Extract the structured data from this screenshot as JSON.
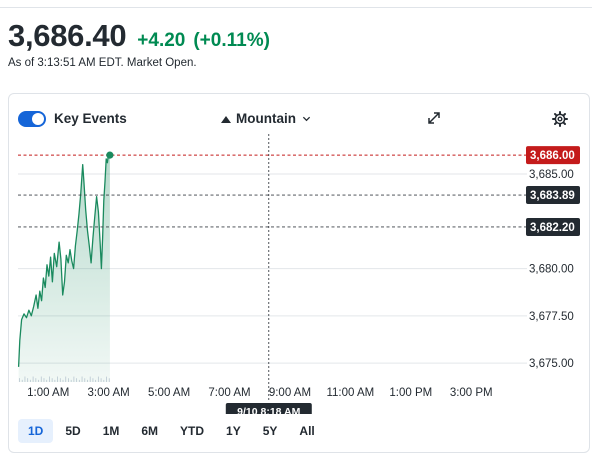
{
  "quote": {
    "price": "3,686.40",
    "change": "+4.20",
    "change_pct": "(+0.11%)",
    "as_of": "As of 3:13:51 AM EDT. Market Open."
  },
  "toolbar": {
    "key_events_label": "Key Events",
    "key_events_on": true,
    "chart_type_label": "Mountain",
    "icons": [
      "mountain-icon",
      "chevron-down-icon",
      "expand-icon",
      "gear-icon"
    ]
  },
  "colors": {
    "up": "#008a52",
    "line": "#1a8a5e",
    "area": "#e3f2ea",
    "current_tag": "#c41b1b",
    "ref_tag": "#232a31",
    "accent": "#1565d8"
  },
  "chart_data": {
    "type": "area",
    "title": "",
    "xlabel": "",
    "ylabel": "",
    "x_tick_labels": [
      "1:00 AM",
      "3:00 AM",
      "5:00 AM",
      "7:00 AM",
      "9:00 AM",
      "11:00 AM",
      "1:00 PM",
      "3:00 PM"
    ],
    "y_tick_labels": [
      "3,685.00",
      "3,680.00",
      "3,677.50",
      "3,675.00"
    ],
    "y_ticks": [
      3685,
      3680,
      3677.5,
      3675
    ],
    "ylim": [
      3674,
      3686.8
    ],
    "x_hours_range": [
      0.0,
      16.25
    ],
    "grid": true,
    "crosshair_label": "9/10 8:18 AM",
    "crosshair_hour": 8.3,
    "price_tags": [
      {
        "label": "3,686.00",
        "value": 3686.0,
        "kind": "current"
      },
      {
        "label": "3,683.89",
        "value": 3683.89,
        "kind": "ref"
      },
      {
        "label": "3,682.20",
        "value": 3682.2,
        "kind": "ref"
      }
    ],
    "series": [
      {
        "values": [
          [
            0.02,
            3674.8
          ],
          [
            0.06,
            3676.2
          ],
          [
            0.12,
            3677.3
          ],
          [
            0.2,
            3677.6
          ],
          [
            0.28,
            3677.4
          ],
          [
            0.36,
            3677.8
          ],
          [
            0.44,
            3677.5
          ],
          [
            0.52,
            3678.0
          ],
          [
            0.6,
            3678.6
          ],
          [
            0.66,
            3677.9
          ],
          [
            0.72,
            3678.8
          ],
          [
            0.78,
            3678.3
          ],
          [
            0.84,
            3679.5
          ],
          [
            0.9,
            3679.0
          ],
          [
            0.96,
            3680.2
          ],
          [
            1.02,
            3679.6
          ],
          [
            1.08,
            3680.6
          ],
          [
            1.14,
            3679.3
          ],
          [
            1.2,
            3680.8
          ],
          [
            1.28,
            3680.1
          ],
          [
            1.36,
            3681.4
          ],
          [
            1.42,
            3680.5
          ],
          [
            1.48,
            3678.6
          ],
          [
            1.54,
            3679.3
          ],
          [
            1.6,
            3680.7
          ],
          [
            1.66,
            3680.3
          ],
          [
            1.72,
            3681.0
          ],
          [
            1.78,
            3680.4
          ],
          [
            1.84,
            3680.0
          ],
          [
            1.9,
            3681.2
          ],
          [
            1.96,
            3682.0
          ],
          [
            2.02,
            3682.9
          ],
          [
            2.08,
            3684.0
          ],
          [
            2.14,
            3685.5
          ],
          [
            2.18,
            3684.6
          ],
          [
            2.24,
            3683.1
          ],
          [
            2.3,
            3682.0
          ],
          [
            2.36,
            3681.2
          ],
          [
            2.42,
            3680.3
          ],
          [
            2.48,
            3681.6
          ],
          [
            2.54,
            3682.7
          ],
          [
            2.6,
            3683.8
          ],
          [
            2.66,
            3683.0
          ],
          [
            2.72,
            3681.3
          ],
          [
            2.76,
            3680.0
          ],
          [
            2.8,
            3681.6
          ],
          [
            2.84,
            3683.6
          ],
          [
            2.88,
            3684.6
          ],
          [
            2.92,
            3685.8
          ],
          [
            2.96,
            3685.6
          ],
          [
            3.0,
            3686.1
          ],
          [
            3.04,
            3686.0
          ]
        ]
      }
    ]
  },
  "ranges": {
    "items": [
      {
        "key": "1d",
        "label": "1D",
        "active": true
      },
      {
        "key": "5d",
        "label": "5D",
        "active": false
      },
      {
        "key": "1m",
        "label": "1M",
        "active": false
      },
      {
        "key": "6m",
        "label": "6M",
        "active": false
      },
      {
        "key": "ytd",
        "label": "YTD",
        "active": false
      },
      {
        "key": "1y",
        "label": "1Y",
        "active": false
      },
      {
        "key": "5y",
        "label": "5Y",
        "active": false
      },
      {
        "key": "all",
        "label": "All",
        "active": false
      }
    ]
  }
}
